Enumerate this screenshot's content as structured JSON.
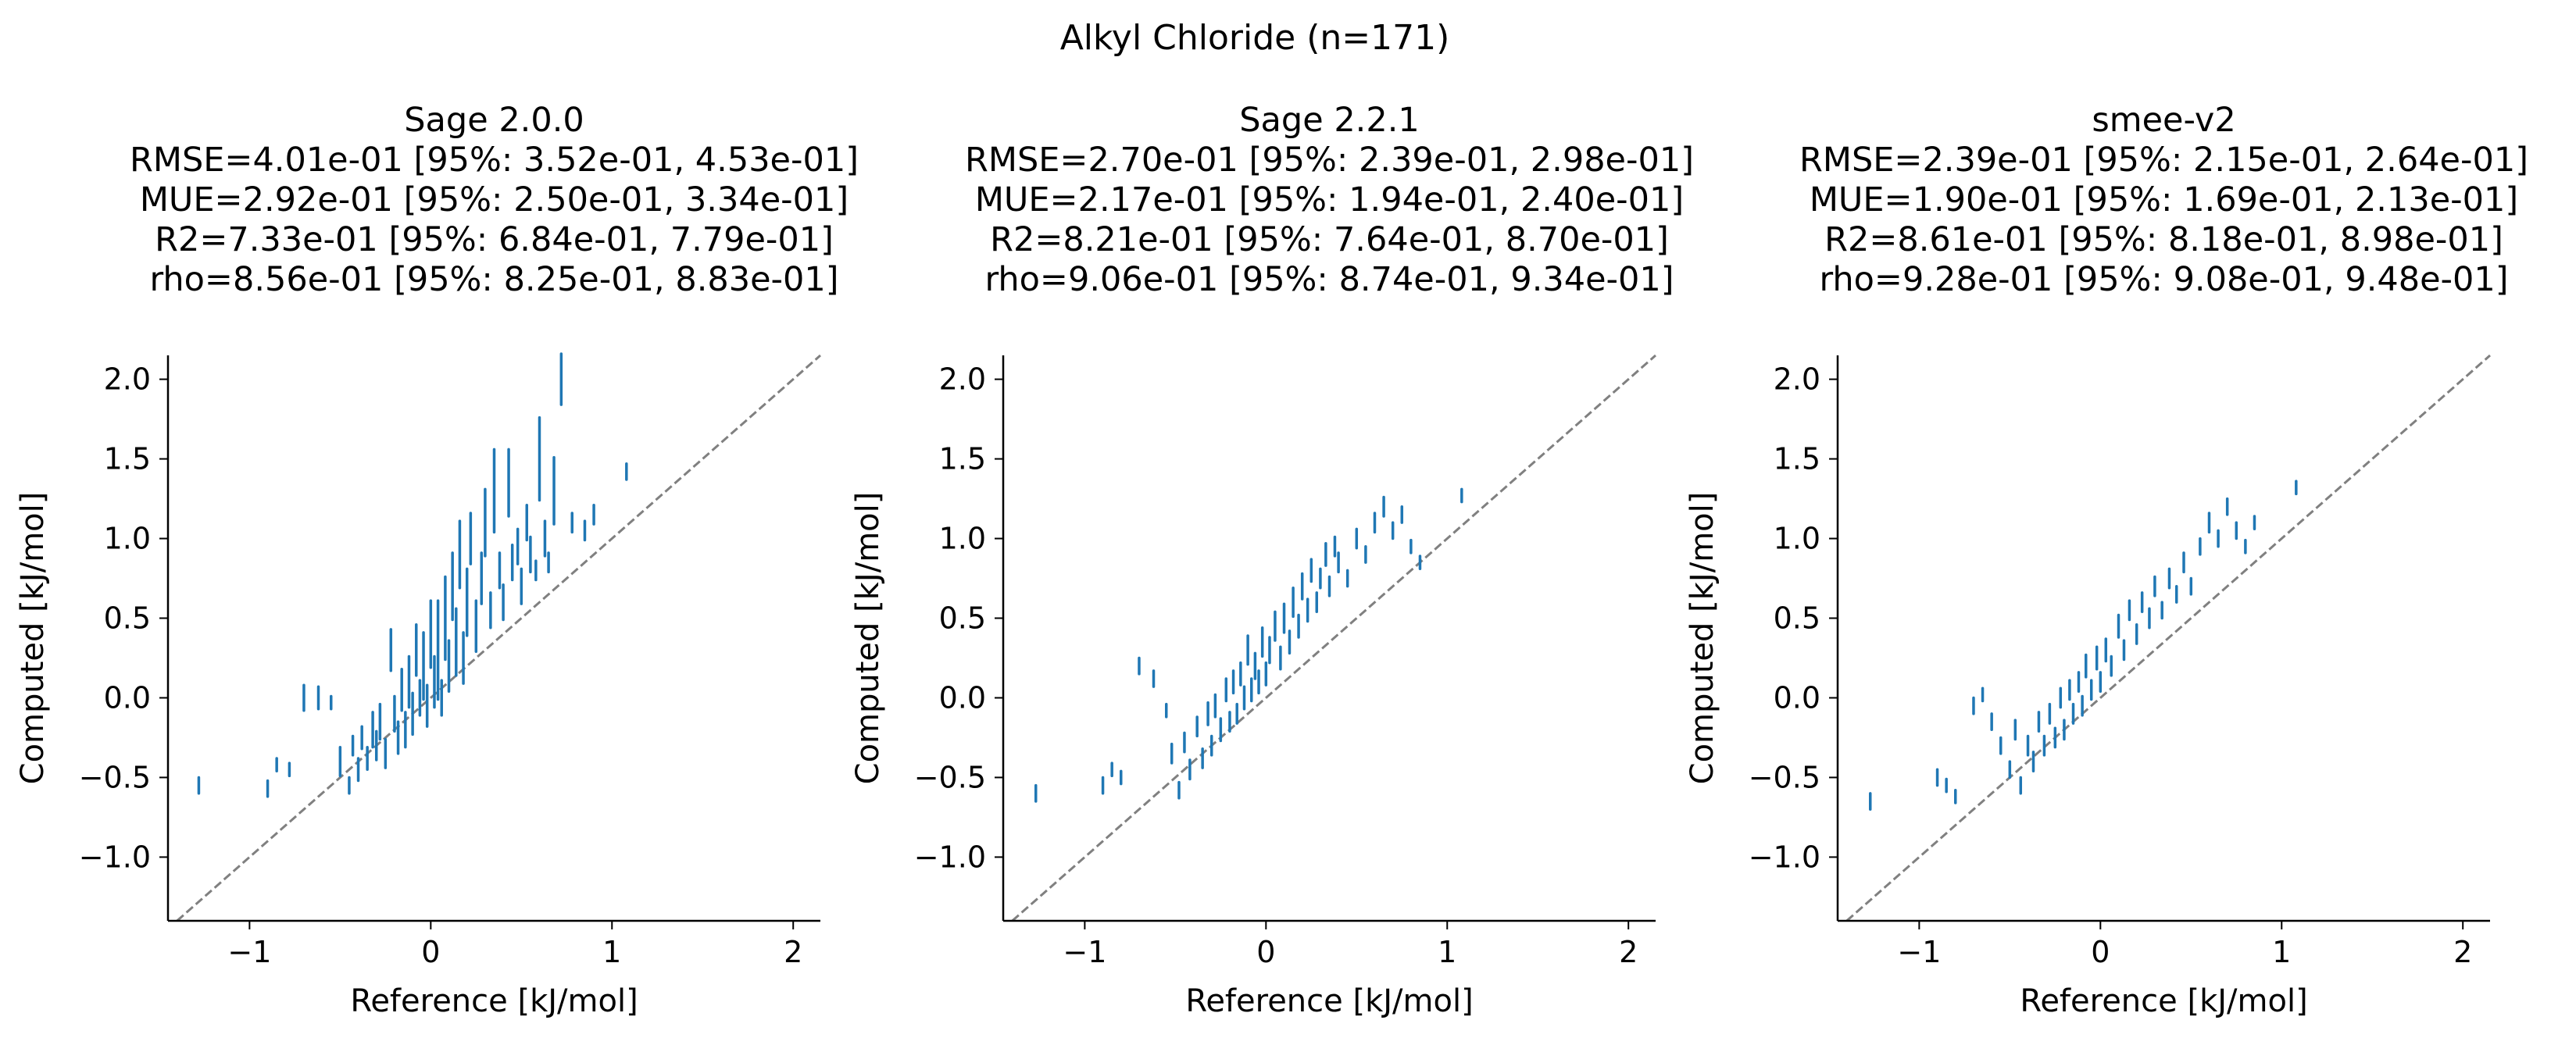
{
  "figure": {
    "title": "Alkyl Chloride (n=171)"
  },
  "chart_data": [
    {
      "type": "scatter",
      "title": "Sage 2.0.0",
      "stats": [
        "RMSE=4.01e-01 [95%: 3.52e-01, 4.53e-01]",
        "MUE=2.92e-01 [95%: 2.50e-01, 3.34e-01]",
        "R2=7.33e-01 [95%: 6.84e-01, 7.79e-01]",
        "rho=8.56e-01 [95%: 8.25e-01, 8.83e-01]"
      ],
      "xlabel": "Reference [kJ/mol]",
      "ylabel": "Computed [kJ/mol]",
      "xlim": [
        -1.45,
        2.15
      ],
      "ylim": [
        -1.4,
        2.15
      ],
      "xticks": [
        -1,
        0,
        1,
        2
      ],
      "xtick_labels": [
        "−1",
        "0",
        "1",
        "2"
      ],
      "yticks": [
        -1.0,
        -0.5,
        0.0,
        0.5,
        1.0,
        1.5,
        2.0
      ],
      "ytick_labels": [
        "−1.0",
        "−0.5",
        "0.0",
        "0.5",
        "1.0",
        "1.5",
        "2.0"
      ],
      "grid": false,
      "marker_color": "#1f77b4",
      "diagonal_color": "#808080",
      "points": [
        [
          -1.28,
          -0.55,
          0.04
        ],
        [
          -0.9,
          -0.57,
          0.04
        ],
        [
          -0.85,
          -0.42,
          0.03
        ],
        [
          -0.78,
          -0.45,
          0.03
        ],
        [
          -0.7,
          0.0,
          0.07
        ],
        [
          -0.62,
          0.0,
          0.06
        ],
        [
          -0.55,
          -0.03,
          0.03
        ],
        [
          -0.5,
          -0.4,
          0.08
        ],
        [
          -0.45,
          -0.55,
          0.04
        ],
        [
          -0.43,
          -0.3,
          0.05
        ],
        [
          -0.4,
          -0.45,
          0.06
        ],
        [
          -0.38,
          -0.25,
          0.06
        ],
        [
          -0.35,
          -0.38,
          0.06
        ],
        [
          -0.32,
          -0.2,
          0.1
        ],
        [
          -0.3,
          -0.3,
          0.08
        ],
        [
          -0.28,
          -0.15,
          0.1
        ],
        [
          -0.25,
          -0.35,
          0.08
        ],
        [
          -0.22,
          0.3,
          0.12
        ],
        [
          -0.2,
          -0.1,
          0.1
        ],
        [
          -0.18,
          -0.25,
          0.09
        ],
        [
          -0.16,
          0.05,
          0.12
        ],
        [
          -0.14,
          -0.2,
          0.1
        ],
        [
          -0.12,
          0.1,
          0.15
        ],
        [
          -0.1,
          -0.1,
          0.12
        ],
        [
          -0.08,
          0.3,
          0.15
        ],
        [
          -0.06,
          0.0,
          0.1
        ],
        [
          -0.04,
          0.2,
          0.2
        ],
        [
          -0.02,
          -0.05,
          0.12
        ],
        [
          0.0,
          0.4,
          0.2
        ],
        [
          0.02,
          0.1,
          0.15
        ],
        [
          0.04,
          0.3,
          0.3
        ],
        [
          0.06,
          0.0,
          0.1
        ],
        [
          0.08,
          0.5,
          0.25
        ],
        [
          0.1,
          0.2,
          0.15
        ],
        [
          0.12,
          0.7,
          0.2
        ],
        [
          0.14,
          0.35,
          0.2
        ],
        [
          0.16,
          0.9,
          0.2
        ],
        [
          0.18,
          0.25,
          0.15
        ],
        [
          0.2,
          0.6,
          0.2
        ],
        [
          0.22,
          1.0,
          0.15
        ],
        [
          0.25,
          0.45,
          0.15
        ],
        [
          0.28,
          0.75,
          0.15
        ],
        [
          0.3,
          1.1,
          0.2
        ],
        [
          0.33,
          0.55,
          0.1
        ],
        [
          0.35,
          1.3,
          0.25
        ],
        [
          0.38,
          0.8,
          0.1
        ],
        [
          0.4,
          0.6,
          0.1
        ],
        [
          0.43,
          1.35,
          0.2
        ],
        [
          0.45,
          0.85,
          0.1
        ],
        [
          0.48,
          0.95,
          0.1
        ],
        [
          0.5,
          0.7,
          0.1
        ],
        [
          0.53,
          1.1,
          0.1
        ],
        [
          0.55,
          0.9,
          0.1
        ],
        [
          0.58,
          0.8,
          0.05
        ],
        [
          0.6,
          1.5,
          0.25
        ],
        [
          0.63,
          1.0,
          0.1
        ],
        [
          0.65,
          0.85,
          0.05
        ],
        [
          0.68,
          1.3,
          0.2
        ],
        [
          0.72,
          2.0,
          0.15
        ],
        [
          0.78,
          1.1,
          0.05
        ],
        [
          0.85,
          1.05,
          0.05
        ],
        [
          0.9,
          1.15,
          0.05
        ],
        [
          1.08,
          1.42,
          0.04
        ]
      ]
    },
    {
      "type": "scatter",
      "title": "Sage 2.2.1",
      "stats": [
        "RMSE=2.70e-01 [95%: 2.39e-01, 2.98e-01]",
        "MUE=2.17e-01 [95%: 1.94e-01, 2.40e-01]",
        "R2=8.21e-01 [95%: 7.64e-01, 8.70e-01]",
        "rho=9.06e-01 [95%: 8.74e-01, 9.34e-01]"
      ],
      "xlabel": "Reference [kJ/mol]",
      "ylabel": "Computed [kJ/mol]",
      "xlim": [
        -1.45,
        2.15
      ],
      "ylim": [
        -1.4,
        2.15
      ],
      "xticks": [
        -1,
        0,
        1,
        2
      ],
      "xtick_labels": [
        "−1",
        "0",
        "1",
        "2"
      ],
      "yticks": [
        -1.0,
        -0.5,
        0.0,
        0.5,
        1.0,
        1.5,
        2.0
      ],
      "ytick_labels": [
        "−1.0",
        "−0.5",
        "0.0",
        "0.5",
        "1.0",
        "1.5",
        "2.0"
      ],
      "grid": false,
      "marker_color": "#1f77b4",
      "diagonal_color": "#808080",
      "points": [
        [
          -1.27,
          -0.6,
          0.04
        ],
        [
          -0.9,
          -0.55,
          0.04
        ],
        [
          -0.85,
          -0.45,
          0.03
        ],
        [
          -0.8,
          -0.5,
          0.03
        ],
        [
          -0.7,
          0.2,
          0.04
        ],
        [
          -0.62,
          0.12,
          0.04
        ],
        [
          -0.55,
          -0.08,
          0.03
        ],
        [
          -0.52,
          -0.35,
          0.05
        ],
        [
          -0.48,
          -0.58,
          0.04
        ],
        [
          -0.45,
          -0.28,
          0.05
        ],
        [
          -0.42,
          -0.45,
          0.05
        ],
        [
          -0.38,
          -0.18,
          0.05
        ],
        [
          -0.35,
          -0.38,
          0.05
        ],
        [
          -0.32,
          -0.1,
          0.06
        ],
        [
          -0.3,
          -0.3,
          0.05
        ],
        [
          -0.28,
          -0.05,
          0.06
        ],
        [
          -0.25,
          -0.2,
          0.06
        ],
        [
          -0.22,
          0.05,
          0.06
        ],
        [
          -0.2,
          -0.15,
          0.05
        ],
        [
          -0.18,
          0.1,
          0.06
        ],
        [
          -0.16,
          -0.1,
          0.05
        ],
        [
          -0.14,
          0.15,
          0.06
        ],
        [
          -0.12,
          0.0,
          0.06
        ],
        [
          -0.1,
          0.3,
          0.08
        ],
        [
          -0.08,
          0.05,
          0.06
        ],
        [
          -0.06,
          0.2,
          0.07
        ],
        [
          -0.04,
          0.1,
          0.06
        ],
        [
          -0.02,
          0.35,
          0.08
        ],
        [
          0.0,
          0.15,
          0.06
        ],
        [
          0.02,
          0.3,
          0.07
        ],
        [
          0.05,
          0.45,
          0.08
        ],
        [
          0.08,
          0.25,
          0.06
        ],
        [
          0.1,
          0.5,
          0.08
        ],
        [
          0.13,
          0.35,
          0.06
        ],
        [
          0.15,
          0.6,
          0.08
        ],
        [
          0.18,
          0.45,
          0.06
        ],
        [
          0.2,
          0.7,
          0.07
        ],
        [
          0.23,
          0.55,
          0.06
        ],
        [
          0.25,
          0.8,
          0.06
        ],
        [
          0.28,
          0.6,
          0.05
        ],
        [
          0.3,
          0.75,
          0.05
        ],
        [
          0.33,
          0.9,
          0.06
        ],
        [
          0.35,
          0.7,
          0.05
        ],
        [
          0.38,
          0.95,
          0.05
        ],
        [
          0.4,
          0.85,
          0.05
        ],
        [
          0.45,
          0.75,
          0.04
        ],
        [
          0.5,
          1.0,
          0.05
        ],
        [
          0.55,
          0.9,
          0.04
        ],
        [
          0.6,
          1.1,
          0.05
        ],
        [
          0.65,
          1.2,
          0.05
        ],
        [
          0.7,
          1.05,
          0.04
        ],
        [
          0.75,
          1.15,
          0.04
        ],
        [
          0.8,
          0.95,
          0.03
        ],
        [
          0.85,
          0.85,
          0.03
        ],
        [
          1.08,
          1.27,
          0.03
        ]
      ]
    },
    {
      "type": "scatter",
      "title": "smee-v2",
      "stats": [
        "RMSE=2.39e-01 [95%: 2.15e-01, 2.64e-01]",
        "MUE=1.90e-01 [95%: 1.69e-01, 2.13e-01]",
        "R2=8.61e-01 [95%: 8.18e-01, 8.98e-01]",
        "rho=9.28e-01 [95%: 9.08e-01, 9.48e-01]"
      ],
      "xlabel": "Reference [kJ/mol]",
      "ylabel": "Computed [kJ/mol]",
      "xlim": [
        -1.45,
        2.15
      ],
      "ylim": [
        -1.4,
        2.15
      ],
      "xticks": [
        -1,
        0,
        1,
        2
      ],
      "xtick_labels": [
        "−1",
        "0",
        "1",
        "2"
      ],
      "yticks": [
        -1.0,
        -0.5,
        0.0,
        0.5,
        1.0,
        1.5,
        2.0
      ],
      "ytick_labels": [
        "−1.0",
        "−0.5",
        "0.0",
        "0.5",
        "1.0",
        "1.5",
        "2.0"
      ],
      "grid": false,
      "marker_color": "#1f77b4",
      "diagonal_color": "#808080",
      "points": [
        [
          -1.27,
          -0.65,
          0.04
        ],
        [
          -0.9,
          -0.5,
          0.04
        ],
        [
          -0.85,
          -0.55,
          0.03
        ],
        [
          -0.8,
          -0.62,
          0.03
        ],
        [
          -0.7,
          -0.05,
          0.04
        ],
        [
          -0.65,
          0.02,
          0.03
        ],
        [
          -0.6,
          -0.15,
          0.04
        ],
        [
          -0.55,
          -0.3,
          0.04
        ],
        [
          -0.5,
          -0.45,
          0.04
        ],
        [
          -0.47,
          -0.2,
          0.05
        ],
        [
          -0.44,
          -0.55,
          0.04
        ],
        [
          -0.4,
          -0.3,
          0.05
        ],
        [
          -0.37,
          -0.4,
          0.05
        ],
        [
          -0.34,
          -0.15,
          0.05
        ],
        [
          -0.31,
          -0.3,
          0.05
        ],
        [
          -0.28,
          -0.1,
          0.05
        ],
        [
          -0.25,
          -0.25,
          0.05
        ],
        [
          -0.22,
          0.0,
          0.05
        ],
        [
          -0.2,
          -0.2,
          0.05
        ],
        [
          -0.17,
          0.05,
          0.05
        ],
        [
          -0.15,
          -0.1,
          0.05
        ],
        [
          -0.12,
          0.1,
          0.05
        ],
        [
          -0.1,
          -0.05,
          0.05
        ],
        [
          -0.08,
          0.2,
          0.06
        ],
        [
          -0.05,
          0.05,
          0.05
        ],
        [
          -0.02,
          0.25,
          0.06
        ],
        [
          0.0,
          0.1,
          0.05
        ],
        [
          0.03,
          0.3,
          0.06
        ],
        [
          0.06,
          0.2,
          0.05
        ],
        [
          0.1,
          0.45,
          0.06
        ],
        [
          0.13,
          0.3,
          0.05
        ],
        [
          0.16,
          0.55,
          0.05
        ],
        [
          0.2,
          0.4,
          0.05
        ],
        [
          0.23,
          0.6,
          0.05
        ],
        [
          0.27,
          0.5,
          0.05
        ],
        [
          0.3,
          0.7,
          0.05
        ],
        [
          0.34,
          0.55,
          0.04
        ],
        [
          0.38,
          0.75,
          0.05
        ],
        [
          0.42,
          0.65,
          0.04
        ],
        [
          0.46,
          0.85,
          0.05
        ],
        [
          0.5,
          0.7,
          0.04
        ],
        [
          0.55,
          0.95,
          0.04
        ],
        [
          0.6,
          1.1,
          0.05
        ],
        [
          0.65,
          1.0,
          0.04
        ],
        [
          0.7,
          1.2,
          0.04
        ],
        [
          0.75,
          1.05,
          0.04
        ],
        [
          0.8,
          0.95,
          0.03
        ],
        [
          0.85,
          1.1,
          0.03
        ],
        [
          1.08,
          1.32,
          0.03
        ]
      ]
    }
  ]
}
